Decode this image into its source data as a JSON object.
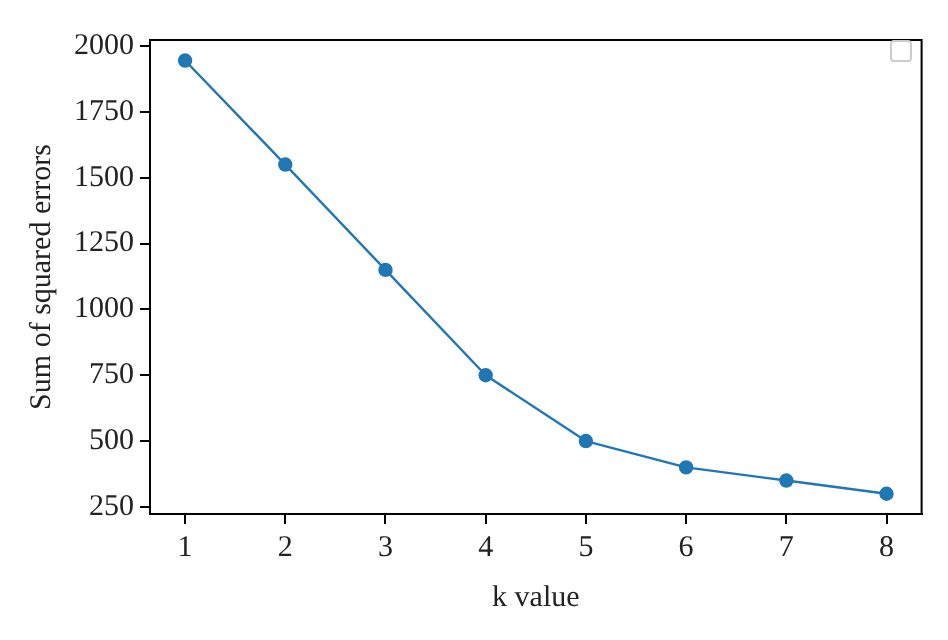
{
  "chart_data": {
    "type": "line",
    "xlabel": "k value",
    "ylabel": "Sum of squared errors",
    "x": [
      1,
      2,
      3,
      4,
      5,
      6,
      7,
      8
    ],
    "series": [
      {
        "color": "#1f77b4",
        "values": [
          1945,
          1550,
          1150,
          750,
          500,
          400,
          350,
          300
        ]
      }
    ],
    "xlim": [
      0.65,
      8.35
    ],
    "xticks": [
      1,
      2,
      3,
      4,
      5,
      6,
      7,
      8
    ],
    "ylim": [
      223,
      2023
    ],
    "yticks": [
      250,
      500,
      750,
      1000,
      1250,
      1500,
      1750,
      2000
    ],
    "marker": "circle",
    "line_style": "solid",
    "grid": false
  }
}
